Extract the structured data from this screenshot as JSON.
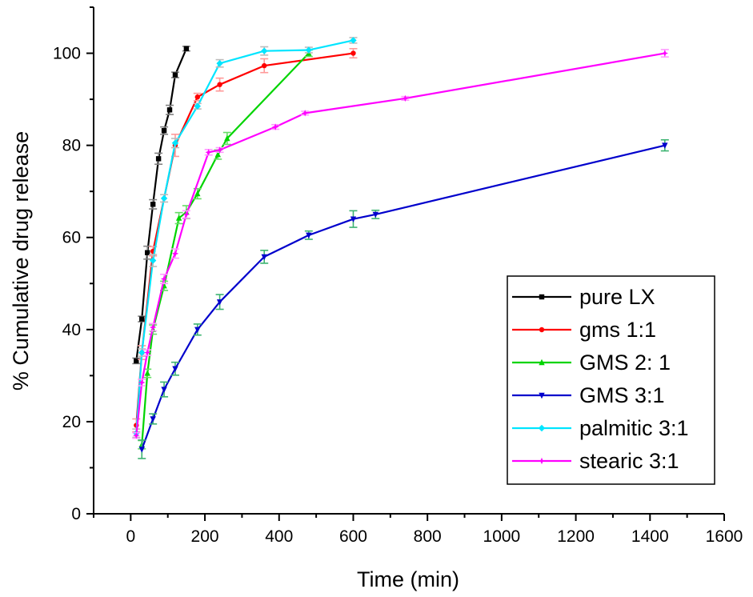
{
  "chart_data": {
    "type": "line",
    "xlabel": "Time (min)",
    "ylabel": "% Cumulative drug release",
    "xlim": [
      -100,
      1600
    ],
    "ylim": [
      0,
      110
    ],
    "xticks": [
      0,
      200,
      400,
      600,
      800,
      1000,
      1200,
      1400,
      1600
    ],
    "yticks": [
      0,
      20,
      40,
      60,
      80,
      100
    ],
    "grid": false,
    "legend_position": "bottom-right",
    "series": [
      {
        "name": "pure LX",
        "color": "#000000",
        "marker": "square",
        "errcolor": "#808080",
        "x": [
          15,
          30,
          45,
          60,
          75,
          90,
          105,
          120,
          150
        ],
        "y": [
          33.2,
          42.3,
          56.7,
          67.2,
          77.1,
          83.2,
          87.7,
          95.3,
          101.0
        ],
        "err": [
          0.6,
          0.6,
          1.4,
          1.0,
          1.2,
          0.8,
          1.0,
          0.6,
          0.5
        ]
      },
      {
        "name": "gms 1:1",
        "color": "#ff0000",
        "marker": "circle",
        "errcolor": "#ff9999",
        "x": [
          15,
          30,
          60,
          120,
          180,
          240,
          360,
          600
        ],
        "y": [
          19.2,
          35.0,
          57.0,
          80.0,
          90.5,
          93.2,
          97.3,
          100.0
        ],
        "err": [
          1.4,
          1.5,
          1.0,
          2.4,
          0.8,
          1.4,
          1.5,
          1.0
        ]
      },
      {
        "name": "GMS 2: 1",
        "color": "#00d400",
        "marker": "triangle",
        "errcolor": "#66dd66",
        "x": [
          30,
          45,
          60,
          90,
          130,
          150,
          180,
          235,
          260,
          480
        ],
        "y": [
          15.0,
          30.5,
          40.0,
          49.5,
          64.2,
          65.5,
          69.5,
          78.0,
          81.5,
          100.0
        ],
        "err": [
          0.9,
          0.9,
          1.0,
          1.0,
          1.2,
          1.4,
          1.1,
          1.0,
          1.3,
          0.7
        ]
      },
      {
        "name": "GMS 3:1",
        "color": "#0000cc",
        "marker": "triangle-down",
        "errcolor": "#3cb371",
        "x": [
          30,
          60,
          90,
          120,
          180,
          240,
          360,
          480,
          600,
          660,
          1440
        ],
        "y": [
          14.0,
          20.6,
          27.0,
          31.5,
          40.0,
          46.0,
          55.8,
          60.5,
          64.0,
          65.0,
          80.0
        ],
        "err": [
          2.0,
          1.1,
          1.6,
          1.4,
          1.2,
          1.6,
          1.4,
          0.9,
          1.8,
          0.9,
          1.2
        ]
      },
      {
        "name": "palmitic 3:1",
        "color": "#00e5ff",
        "marker": "diamond",
        "errcolor": "#bbbbbb",
        "x": [
          15,
          30,
          60,
          90,
          120,
          180,
          240,
          360,
          480,
          600
        ],
        "y": [
          17.5,
          35.0,
          55.0,
          68.5,
          80.5,
          88.5,
          97.8,
          100.5,
          100.7,
          102.8
        ],
        "err": [
          0.9,
          0.8,
          1.3,
          0.8,
          1.0,
          0.6,
          0.8,
          0.9,
          0.6,
          0.6
        ]
      },
      {
        "name": "stearic 3:1",
        "color": "#ff00ff",
        "marker": "star",
        "errcolor": "#ff99ff",
        "x": [
          15,
          30,
          45,
          60,
          90,
          120,
          150,
          210,
          240,
          390,
          470,
          740,
          1440
        ],
        "y": [
          17.0,
          28.5,
          35.0,
          40.5,
          51.0,
          56.5,
          65.0,
          78.5,
          79.0,
          84.0,
          87.0,
          90.2,
          100.0
        ],
        "err": [
          0.6,
          0.7,
          0.6,
          0.8,
          1.0,
          1.0,
          0.8,
          0.6,
          0.5,
          0.5,
          0.4,
          0.4,
          0.8
        ]
      }
    ]
  }
}
